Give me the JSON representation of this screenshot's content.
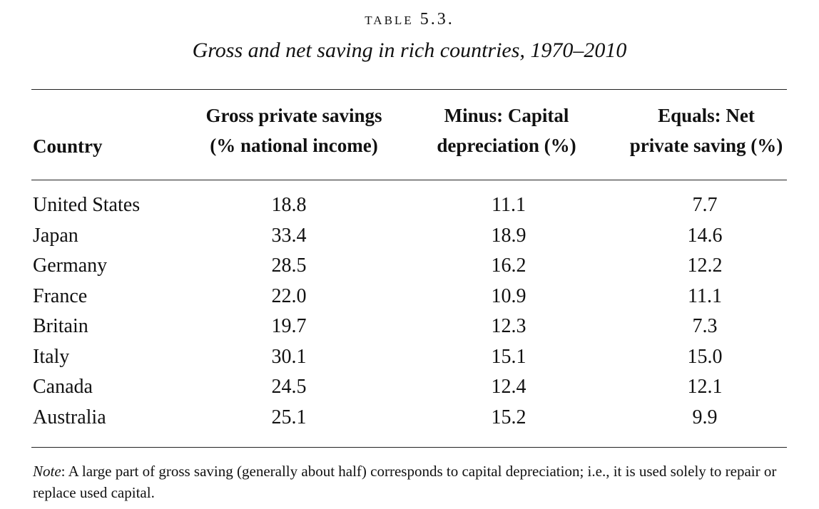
{
  "table": {
    "label": "TABLE 5.3.",
    "title": "Gross and net saving in rich countries, 1970–2010",
    "headers": {
      "country": "Country",
      "gross_line1": "Gross private savings",
      "gross_line2": "(% national income)",
      "dep_line1": "Minus: Capital",
      "dep_line2": "depreciation (%)",
      "net_line1": "Equals: Net",
      "net_line2": "private saving (%)"
    },
    "rows": [
      {
        "country": "United States",
        "gross": "18.8",
        "depreciation": "11.1",
        "net": "7.7"
      },
      {
        "country": "Japan",
        "gross": "33.4",
        "depreciation": "18.9",
        "net": "14.6"
      },
      {
        "country": "Germany",
        "gross": "28.5",
        "depreciation": "16.2",
        "net": "12.2"
      },
      {
        "country": "France",
        "gross": "22.0",
        "depreciation": "10.9",
        "net": "11.1"
      },
      {
        "country": "Britain",
        "gross": "19.7",
        "depreciation": "12.3",
        "net": "7.3"
      },
      {
        "country": "Italy",
        "gross": "30.1",
        "depreciation": "15.1",
        "net": "15.0"
      },
      {
        "country": "Canada",
        "gross": "24.5",
        "depreciation": "12.4",
        "net": "12.1"
      },
      {
        "country": "Australia",
        "gross": "25.1",
        "depreciation": "15.2",
        "net": "9.9"
      }
    ],
    "note": {
      "label": "Note",
      "text": ": A large part of gross saving (generally about half) corresponds to capital depreciation; i.e., it is used solely to repair or replace used capital."
    }
  }
}
